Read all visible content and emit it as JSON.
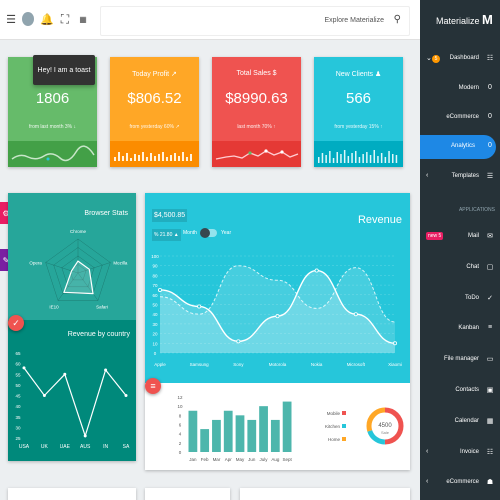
{
  "topbar": {
    "search_placeholder": "Explore Materialize",
    "icons": [
      "menu-icon",
      "avatar",
      "bell-icon",
      "fullscreen-icon",
      "flag-icon"
    ]
  },
  "toast": "Hey! I am a toast",
  "cards": [
    {
      "label": "",
      "value": "1806",
      "sub": "from last month 3% ↓",
      "color": "#66bb6a",
      "spark_color": "#43a047"
    },
    {
      "label": "Today Profit ↗",
      "value": "$806.52",
      "sub": "from yesterday 60% ↗",
      "color": "#ffa726",
      "spark_color": "#fb8c00"
    },
    {
      "label": "Total Sales $",
      "value": "$8990.63",
      "sub": "last month 70% ↑",
      "color": "#ef5350",
      "spark_color": "#e53935"
    },
    {
      "label": "New Clients ♟",
      "value": "566",
      "sub": "from yesterday 15% ↑",
      "color": "#26c6da",
      "spark_color": "#00acc1"
    }
  ],
  "browser_stats": {
    "title": "Browser Stats",
    "labels": [
      "Chrome",
      "Mozilla",
      "Safari",
      "IE10",
      "Opera"
    ]
  },
  "revenue_country": {
    "title": "Revenue by country",
    "chart_data": {
      "type": "line",
      "categories": [
        "USA",
        "UK",
        "UAE",
        "AUS",
        "IN",
        "SA"
      ],
      "values": [
        58,
        45,
        55,
        26,
        57,
        45
      ],
      "yticks": [
        "65",
        "60",
        "55",
        "50",
        "45",
        "40",
        "35",
        "30",
        "25"
      ],
      "ylim": [
        25,
        65
      ]
    }
  },
  "revenue": {
    "title": "Revenue",
    "amount": "$4,500.85",
    "change": "% 21.80 ▲",
    "toggle_left": "Month",
    "toggle_right": "Year",
    "chart_data": {
      "type": "area",
      "categories": [
        "Apple",
        "Samsung",
        "Sony",
        "Motorola",
        "Nokia",
        "Microsoft",
        "Xiaomi"
      ],
      "yticks": [
        "100",
        "90",
        "80",
        "70",
        "60",
        "50",
        "40",
        "30",
        "20",
        "10",
        "0"
      ],
      "ylim": [
        0,
        100
      ],
      "series": [
        {
          "values": [
            65,
            48,
            12,
            38,
            85,
            40,
            10
          ]
        },
        {
          "values": [
            58,
            40,
            90,
            75,
            46,
            88,
            32
          ]
        }
      ]
    }
  },
  "bottom_bar": {
    "chart_data": {
      "type": "bar",
      "categories": [
        "Jan",
        "Feb",
        "Mar",
        "Apr",
        "May",
        "Jun",
        "July",
        "Aug",
        "Sept"
      ],
      "values": [
        9,
        5,
        7,
        9,
        8,
        7,
        10,
        7,
        11
      ],
      "yticks": [
        "12",
        "10",
        "8",
        "6",
        "4",
        "2",
        "0"
      ],
      "ylim": [
        0,
        12
      ]
    }
  },
  "donut": {
    "legend": [
      "Mobile",
      "Kitchen",
      "Home"
    ],
    "legend_colors": [
      "#ef5350",
      "#26c6da",
      "#ffa726"
    ],
    "value": "4500",
    "label": "Sale",
    "chart_data": {
      "type": "pie",
      "values": [
        50,
        20,
        30
      ]
    }
  },
  "sidebar": {
    "title": "Materialize",
    "logo": "M",
    "items": [
      {
        "label": "Dashboard",
        "icon": "☷",
        "icon_name": "dashboard-icon"
      },
      {
        "label": "Modern",
        "icon": "0",
        "icon_name": "circle-icon"
      },
      {
        "label": "eCommerce",
        "icon": "0",
        "icon_name": "circle-icon"
      },
      {
        "label": "Analytics",
        "icon": "0",
        "icon_name": "circle-icon"
      },
      {
        "label": "Templates",
        "icon": "☰",
        "icon_name": "templates-icon"
      }
    ],
    "section": "APPLICATIONS",
    "apps": [
      {
        "label": "Mail",
        "icon": "✉",
        "icon_name": "mail-icon"
      },
      {
        "label": "Chat",
        "icon": "▢",
        "icon_name": "chat-icon"
      },
      {
        "label": "ToDo",
        "icon": "✓",
        "icon_name": "check-icon"
      },
      {
        "label": "Kanban",
        "icon": "≡",
        "icon_name": "kanban-icon"
      },
      {
        "label": "File manager",
        "icon": "▭",
        "icon_name": "folder-icon"
      },
      {
        "label": "Contacts",
        "icon": "▣",
        "icon_name": "contacts-icon"
      },
      {
        "label": "Calendar",
        "icon": "▦",
        "icon_name": "calendar-icon"
      },
      {
        "label": "Invoice",
        "icon": "☷",
        "icon_name": "invoice-icon"
      },
      {
        "label": "eCommerce",
        "icon": "☗",
        "icon_name": "cart-icon"
      }
    ],
    "mail_badge": "new 5",
    "dashboard_badge": "5"
  },
  "colors": {
    "teal": "#26a69a",
    "cyan": "#26c6da",
    "sidebar": "#263238",
    "active": "#1e88e5"
  }
}
